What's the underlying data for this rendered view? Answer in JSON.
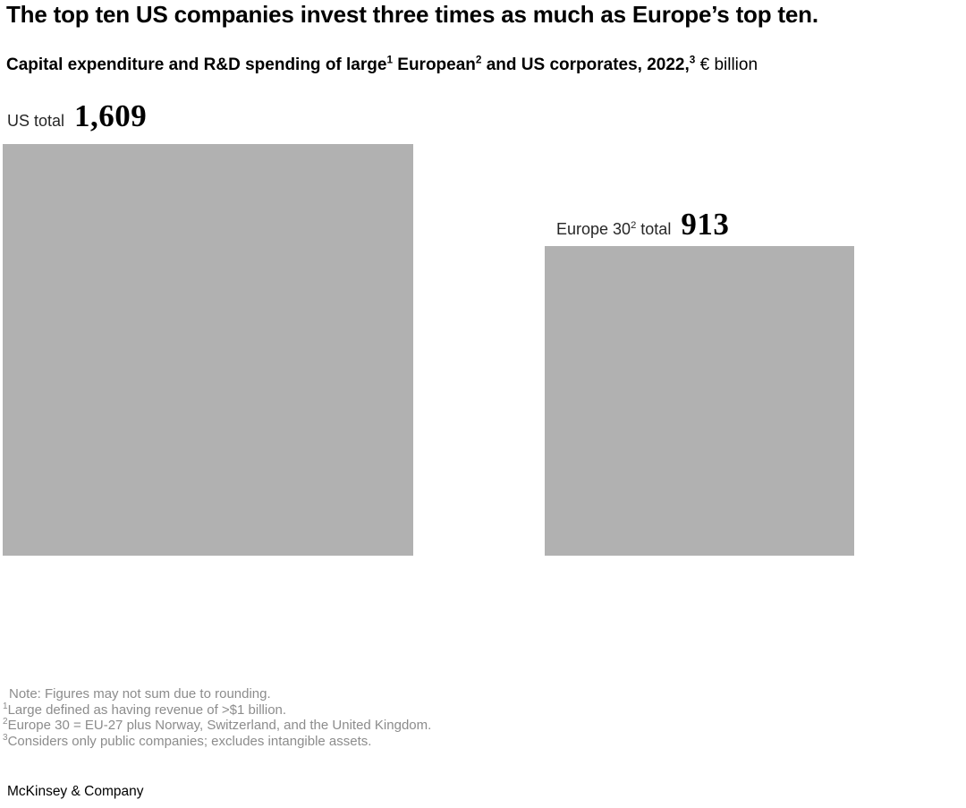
{
  "header": {
    "title": "The top ten US companies invest three times as much as Europe’s top ten.",
    "subtitle": {
      "part1": "Capital expenditure and R&D spending of large",
      "sup1": "1",
      "part2": " European",
      "sup2": "2",
      "part3": " and US corporates, 2022,",
      "sup3": "3",
      "unit": " € billion"
    }
  },
  "chart": {
    "us": {
      "label": "US total",
      "value": "1,609"
    },
    "europe": {
      "label_pre": "Europe 30",
      "label_sup": "2",
      "label_post": " total",
      "value": "913"
    },
    "square_color": "#b1b1b1"
  },
  "notes": {
    "note": "Note: Figures may not sum due to rounding.",
    "fn1": {
      "sup": "1",
      "text": "Large defined as having revenue of >$1 billion."
    },
    "fn2": {
      "sup": "2",
      "text": "Europe 30 = EU-27 plus Norway, Switzerland, and the United Kingdom."
    },
    "fn3": {
      "sup": "3",
      "text": "Considers only public companies; excludes intangible assets."
    }
  },
  "footer": {
    "brand": "McKinsey & Company"
  },
  "chart_data": {
    "type": "bar",
    "representation": "area-proportional-squares",
    "title": "The top ten US companies invest three times as much as Europe’s top ten.",
    "subtitle": "Capital expenditure and R&D spending of large European and US corporates, 2022, € billion",
    "unit": "€ billion",
    "categories": [
      "US total",
      "Europe 30 total"
    ],
    "values": [
      1609,
      913
    ],
    "fill_color": "#b1b1b1",
    "legend": "none",
    "grid": false
  }
}
